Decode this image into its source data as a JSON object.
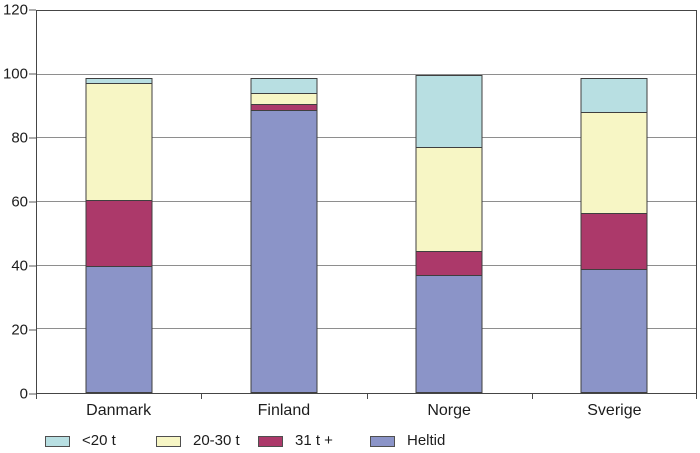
{
  "chart_data": {
    "type": "bar",
    "stacked": true,
    "title": "",
    "xlabel": "",
    "ylabel": "",
    "categories": [
      "Danmark",
      "Finland",
      "Norge",
      "Sverige"
    ],
    "series": [
      {
        "name": "Heltid",
        "color": "#8b94c8",
        "values": [
          40,
          89,
          37,
          39
        ]
      },
      {
        "name": "31 t +",
        "color": "#ac396a",
        "values": [
          21,
          2,
          8,
          18
        ]
      },
      {
        "name": "20-30 t",
        "color": "#f7f6c5",
        "values": [
          37,
          4,
          33,
          32
        ]
      },
      {
        "name": "<20 t",
        "color": "#b8dfe2",
        "values": [
          2,
          5,
          23,
          11
        ]
      }
    ],
    "stack_totals": [
      100,
      100,
      101,
      100
    ],
    "y_axis": {
      "min": 0,
      "max": 120,
      "step": 20,
      "ticks": [
        "0",
        "20",
        "40",
        "60",
        "80",
        "100",
        "120"
      ]
    },
    "grid": true,
    "legend": {
      "position": "bottom",
      "order": [
        "<20 t",
        "20-30 t",
        "31 t +",
        "Heltid"
      ]
    },
    "colors": {
      "under_20t": "#b8dfe2",
      "t20_30": "#f7f6c5",
      "t31_plus": "#ac396a",
      "heltid": "#8b94c8",
      "gridline": "#8e8e8e",
      "plot_border": "#454545",
      "text": "#1c1c1c"
    }
  }
}
